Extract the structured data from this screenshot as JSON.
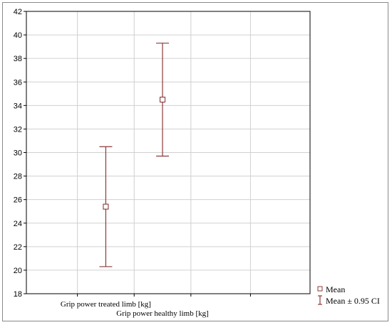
{
  "chart_data": {
    "type": "scatter",
    "subtype": "mean-with-confidence-interval",
    "title": "",
    "xlabel": "",
    "ylabel": "",
    "ylim": [
      18,
      42
    ],
    "yticks": [
      18,
      20,
      22,
      24,
      26,
      28,
      30,
      32,
      34,
      36,
      38,
      40,
      42
    ],
    "grid": true,
    "categories": [
      "Grip power treated limb [kg]",
      "Grip power healthy limb [kg]"
    ],
    "series": [
      {
        "name": "Mean",
        "values": [
          25.4,
          34.5
        ],
        "ci_lower": [
          20.3,
          29.7
        ],
        "ci_upper": [
          30.5,
          39.3
        ]
      }
    ],
    "legend": {
      "placement": "bottom-right",
      "entries": [
        "Mean",
        "Mean ± 0.95 CI"
      ]
    },
    "colors": {
      "error_bar": "#8B3A3A",
      "marker": "#8B3A3A",
      "grid": "#d0d0d0",
      "axis": "#000000"
    }
  }
}
